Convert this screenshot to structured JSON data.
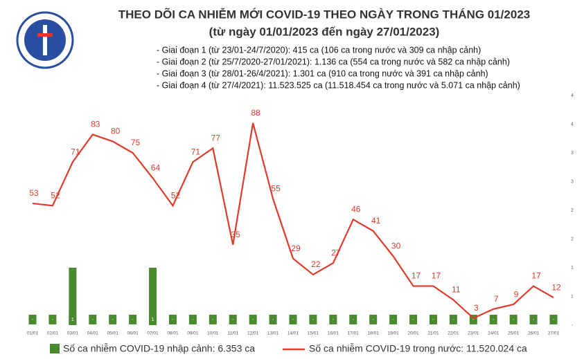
{
  "chart_data": {
    "type": "combo",
    "title": "THEO DÕI CA NHIỄM MỚI COVID-19 THEO NGÀY TRONG THÁNG 01/2023",
    "subtitle": "(từ ngày 01/01/2023 đến ngày 27/01/2023)",
    "notes": [
      "- Giai đoạn 1 (từ 23/01-24/7/2020): 415 ca (106 ca trong nước và 309 ca nhập cảnh)",
      "- Giai đoạn 2 (từ 25/7/2020-27/01/2021): 1.136 ca (554 ca trong nước và 582 ca nhập cảnh)",
      "- Giai đoạn 3 (từ 28/01-26/4/2021): 1.301 ca (910 ca trong nước và 391 ca nhập cảnh)",
      "- Giai đoạn 4 (từ 27/4/2021): 11.523.525 ca (11.518.454 ca trong nước và 5.071 ca nhập cảnh)"
    ],
    "categories": [
      "01/01",
      "02/01",
      "03/01",
      "04/01",
      "05/01",
      "06/01",
      "07/01",
      "08/01",
      "09/01",
      "10/01",
      "11/01",
      "12/01",
      "13/01",
      "14/01",
      "15/01",
      "16/01",
      "17/01",
      "18/01",
      "19/01",
      "20/01",
      "21/01",
      "22/01",
      "23/01",
      "24/01",
      "25/01",
      "26/01",
      "27/01"
    ],
    "series": [
      {
        "name": "Số ca nhiễm COVID-19 nhập cảnh: 6.353 ca",
        "type": "bar",
        "axis": "y2",
        "color": "#4a8a2e",
        "values": [
          0,
          0,
          1,
          0,
          0,
          0,
          1,
          0,
          0,
          0,
          0,
          0,
          0,
          0,
          0,
          0,
          0,
          0,
          0,
          0,
          0,
          0,
          0,
          0,
          0,
          0,
          0
        ],
        "value_labels": [
          "-",
          "-",
          "1",
          "-",
          "-",
          "-",
          "1",
          "-",
          "-",
          "-",
          "-",
          "-",
          "-",
          "-",
          "-",
          "-",
          "-",
          "-",
          "-",
          "-",
          "-",
          "-",
          "-",
          "-",
          "-",
          "-",
          "-"
        ]
      },
      {
        "name": "Số ca nhiễm COVID-19 trong nước: 11.520.024 ca",
        "type": "line",
        "color": "#e03a2a",
        "values": [
          53,
          52,
          71,
          83,
          80,
          75,
          64,
          52,
          71,
          77,
          35,
          88,
          55,
          29,
          22,
          27,
          46,
          41,
          30,
          17,
          17,
          11,
          3,
          7,
          9,
          17,
          12
        ]
      }
    ],
    "ylim": [
      0,
      100
    ],
    "y2lim": [
      0,
      4
    ],
    "y2ticks": [
      {
        "value": 0,
        "label": "-"
      },
      {
        "value": 0.5,
        "label": "1"
      },
      {
        "value": 1,
        "label": "1"
      },
      {
        "value": 1.5,
        "label": "2"
      },
      {
        "value": 2,
        "label": "2"
      },
      {
        "value": 2.5,
        "label": "3"
      },
      {
        "value": 3,
        "label": "3"
      },
      {
        "value": 3.5,
        "label": "4"
      },
      {
        "value": 4,
        "label": "4"
      }
    ]
  }
}
